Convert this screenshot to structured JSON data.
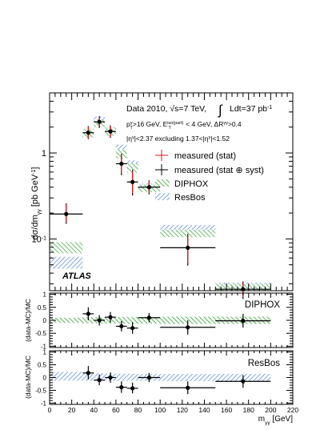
{
  "chart_data": {
    "type": "scatter",
    "experiment_label": "ATLAS",
    "header": {
      "line1_prefix": "Data 2010,",
      "line1_energy": "√s=7 TeV,",
      "line1_lumi": "Ldt=37 pb",
      "line1_lumi_sup": "-1",
      "line2": "p T γ >16 GeV, E T iso(part) < 4 GeV, ΔR γγ >0.4",
      "line3": "|η γ |<2.37 excluding 1.37<|η γ |<1.52"
    },
    "xlabel": "m γγ [GeV]",
    "xlim": [
      0,
      220
    ],
    "x_ticks": [
      0,
      20,
      40,
      60,
      80,
      100,
      120,
      140,
      160,
      180,
      200,
      220
    ],
    "x_edges": [
      0,
      30,
      40,
      50,
      60,
      70,
      80,
      100,
      150,
      200
    ],
    "main": {
      "ylabel": "dσ/dm γγ [pb GeV -1 ]",
      "yscale": "log",
      "ylim": [
        0.025,
        5
      ],
      "y_ticks": [
        {
          "value": 0.1,
          "label": "10 -1"
        },
        {
          "value": 1,
          "label": "1"
        }
      ],
      "legend": {
        "placement": "top-right",
        "entries": [
          {
            "label": "measured (stat)",
            "color": "#e31a1c",
            "kind": "cross"
          },
          {
            "label": "measured (stat ⊕ syst)",
            "color": "#000000",
            "kind": "cross"
          },
          {
            "label": "DIPHOX",
            "color": "#2ca02c",
            "kind": "hatch"
          },
          {
            "label": "ResBos",
            "color": "#4f7fd6",
            "kind": "hatch"
          }
        ]
      },
      "data": [
        {
          "x": 15,
          "xlo": 0,
          "xhi": 30,
          "y": 0.195,
          "stat_lo": 0.155,
          "stat_hi": 0.255,
          "tot_lo": 0.15,
          "tot_hi": 0.26
        },
        {
          "x": 35,
          "xlo": 30,
          "xhi": 40,
          "y": 1.72,
          "stat_lo": 1.48,
          "stat_hi": 2.0,
          "tot_lo": 1.45,
          "tot_hi": 2.05
        },
        {
          "x": 45,
          "xlo": 40,
          "xhi": 50,
          "y": 2.3,
          "stat_lo": 2.0,
          "stat_hi": 2.62,
          "tot_lo": 1.95,
          "tot_hi": 2.68
        },
        {
          "x": 55,
          "xlo": 50,
          "xhi": 60,
          "y": 1.78,
          "stat_lo": 1.55,
          "stat_hi": 2.05,
          "tot_lo": 1.5,
          "tot_hi": 2.1
        },
        {
          "x": 65,
          "xlo": 60,
          "xhi": 70,
          "y": 0.75,
          "stat_lo": 0.58,
          "stat_hi": 0.95,
          "tot_lo": 0.55,
          "tot_hi": 0.98
        },
        {
          "x": 75,
          "xlo": 70,
          "xhi": 80,
          "y": 0.46,
          "stat_lo": 0.34,
          "stat_hi": 0.62,
          "tot_lo": 0.32,
          "tot_hi": 0.64
        },
        {
          "x": 90,
          "xlo": 80,
          "xhi": 100,
          "y": 0.4,
          "stat_lo": 0.34,
          "stat_hi": 0.47,
          "tot_lo": 0.33,
          "tot_hi": 0.48
        },
        {
          "x": 125,
          "xlo": 100,
          "xhi": 150,
          "y": 0.079,
          "stat_lo": 0.052,
          "stat_hi": 0.11,
          "tot_lo": 0.049,
          "tot_hi": 0.114
        },
        {
          "x": 175,
          "xlo": 150,
          "xhi": 200,
          "y": 0.026,
          "stat_lo": 0.021,
          "stat_hi": 0.031,
          "tot_lo": 0.02,
          "tot_hi": 0.032
        }
      ],
      "diphox": [
        {
          "lo": 0.068,
          "hi": 0.092
        },
        {
          "lo": 1.52,
          "hi": 1.88
        },
        {
          "lo": 2.0,
          "hi": 2.45
        },
        {
          "lo": 1.58,
          "hi": 1.98
        },
        {
          "lo": 0.86,
          "hi": 1.1
        },
        {
          "lo": 0.59,
          "hi": 0.76
        },
        {
          "lo": 0.35,
          "hi": 0.43
        },
        {
          "lo": 0.105,
          "hi": 0.128
        },
        {
          "lo": 0.025,
          "hi": 0.03
        }
      ],
      "resbos": [
        {
          "lo": 0.045,
          "hi": 0.062
        },
        {
          "lo": 1.55,
          "hi": 1.9
        },
        {
          "lo": 2.2,
          "hi": 2.65
        },
        {
          "lo": 1.65,
          "hi": 2.0
        },
        {
          "lo": 1.0,
          "hi": 1.25
        },
        {
          "lo": 0.64,
          "hi": 0.82
        },
        {
          "lo": 0.36,
          "hi": 0.44
        },
        {
          "lo": 0.118,
          "hi": 0.145
        },
        {
          "lo": 0.026,
          "hi": 0.031
        }
      ]
    },
    "ratios": [
      {
        "name": "DIPHOX",
        "ylabel": "(data-MC)/MC",
        "ylim": [
          -1.05,
          1.05
        ],
        "y_ticks": [
          -1,
          -0.5,
          0,
          0.5,
          1
        ],
        "color": "#2ca02c",
        "data": [
          {
            "y": 0.25,
            "lo": 0.0,
            "hi": 0.5
          },
          {
            "y": 0.0,
            "lo": -0.2,
            "hi": 0.2
          },
          {
            "y": 0.12,
            "lo": -0.08,
            "hi": 0.32
          },
          {
            "y": -0.23,
            "lo": -0.43,
            "hi": -0.03
          },
          {
            "y": -0.3,
            "lo": -0.52,
            "hi": -0.08
          },
          {
            "y": 0.1,
            "lo": -0.08,
            "hi": 0.28
          },
          {
            "y": -0.27,
            "lo": -0.55,
            "hi": 0.0
          },
          {
            "y": -0.02,
            "lo": -0.28,
            "hi": 0.25
          }
        ],
        "band_lo": [
          -0.1,
          -0.12,
          -0.12,
          -0.13,
          -0.13,
          -0.13,
          -0.13,
          -0.14,
          -0.14
        ],
        "band_hi": [
          0.1,
          0.12,
          0.12,
          0.13,
          0.13,
          0.13,
          0.13,
          0.14,
          0.14
        ]
      },
      {
        "name": "ResBos",
        "ylabel": "(data-MC)/MC",
        "ylim": [
          -1.05,
          1.05
        ],
        "y_ticks": [
          -1,
          -0.5,
          0,
          0.5,
          1
        ],
        "color": "#4f7fd6",
        "data": [
          {
            "y": 0.18,
            "lo": -0.07,
            "hi": 0.45
          },
          {
            "y": -0.1,
            "lo": -0.3,
            "hi": 0.12
          },
          {
            "y": 0.0,
            "lo": -0.2,
            "hi": 0.2
          },
          {
            "y": -0.38,
            "lo": -0.6,
            "hi": -0.15
          },
          {
            "y": -0.42,
            "lo": -0.62,
            "hi": -0.2
          },
          {
            "y": 0.0,
            "lo": -0.18,
            "hi": 0.18
          },
          {
            "y": -0.4,
            "lo": -0.65,
            "hi": -0.15
          },
          {
            "y": -0.15,
            "lo": -0.4,
            "hi": 0.1
          }
        ],
        "band_lo": [
          -0.12,
          -0.13,
          -0.13,
          -0.13,
          -0.13,
          -0.13,
          -0.13,
          -0.14,
          -0.14
        ],
        "band_hi": [
          0.22,
          0.18,
          0.17,
          0.16,
          0.15,
          0.15,
          0.14,
          0.14,
          0.14
        ]
      }
    ]
  }
}
